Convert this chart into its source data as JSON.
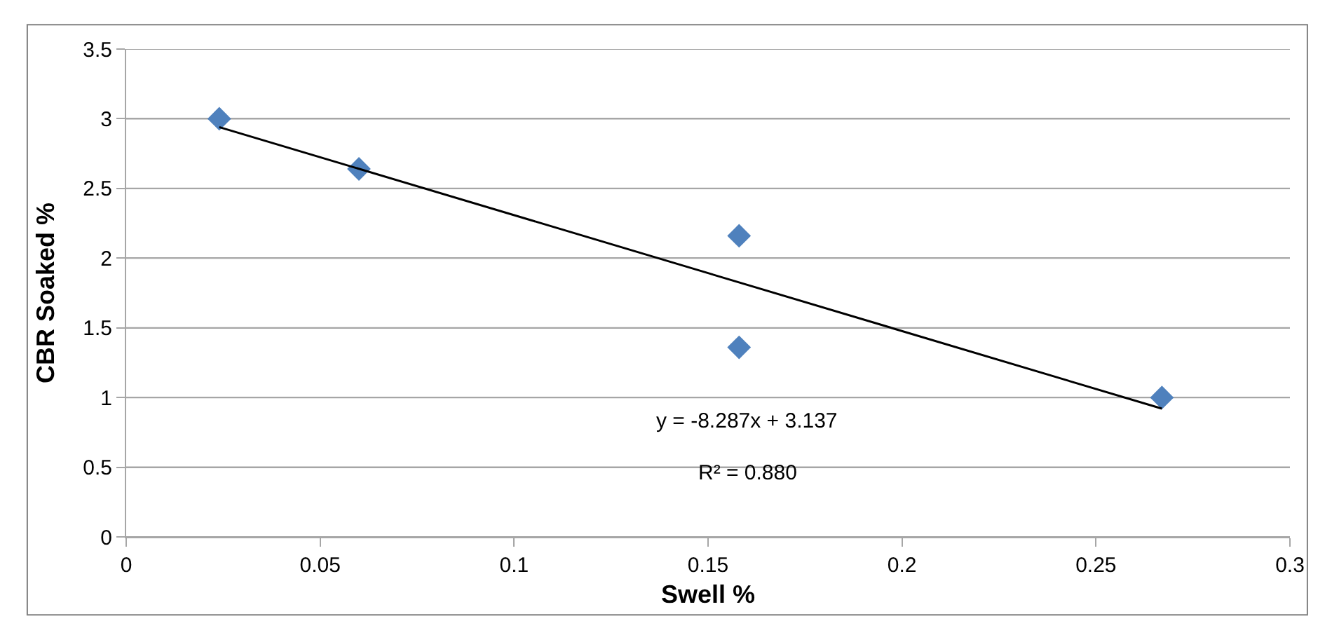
{
  "chart_data": {
    "type": "scatter",
    "xlabel": "Swell %",
    "ylabel": "CBR Soaked %",
    "series": [
      {
        "color": "#4f81bd",
        "marker": "diamond",
        "x": [
          0.024,
          0.06,
          0.158,
          0.158,
          0.267
        ],
        "values": [
          3.0,
          2.64,
          2.16,
          1.36,
          1.0
        ]
      },
      {
        "type": "line",
        "color": "#000000",
        "marker": "none",
        "line_style": "solid",
        "x": [
          0.024,
          0.267
        ],
        "values": [
          2.94,
          0.92
        ]
      }
    ],
    "annotations": [
      "y = -8.287x + 3.137",
      "R² = 0.880"
    ],
    "xlim": [
      0,
      0.3
    ],
    "xticks": [
      0,
      0.05,
      0.1,
      0.15,
      0.2,
      0.25,
      0.3
    ],
    "ylim": [
      0,
      3.5
    ],
    "yticks": [
      0,
      0.5,
      1,
      1.5,
      2,
      2.5,
      3,
      3.5
    ],
    "grid": "y",
    "legend": false
  }
}
